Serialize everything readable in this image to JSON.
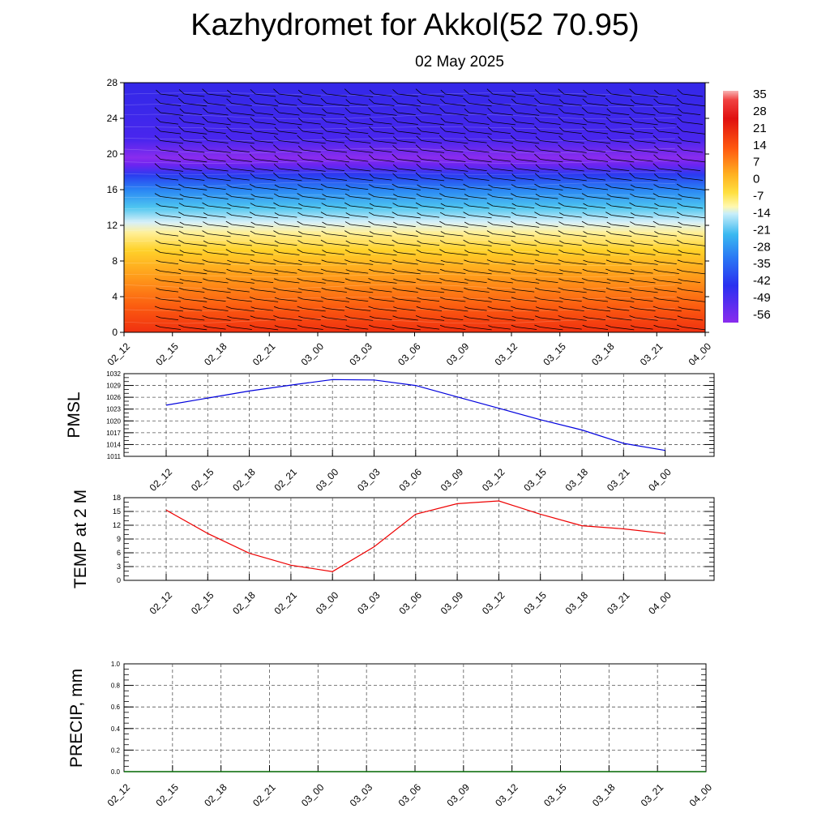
{
  "title": "Kazhydromet for Akkol(52 70.95)",
  "subtitle": "02 May 2025",
  "colors": {
    "pmsl_line": "#0000dd",
    "temp_line": "#ee0000",
    "precip_line": "#006600"
  },
  "chart_data": [
    {
      "type": "heatmap",
      "name": "vertical cross-section",
      "yticks": [
        "0",
        "4",
        "8",
        "12",
        "16",
        "20",
        "24",
        "28"
      ],
      "ylim": [
        0,
        28
      ],
      "xticks": [
        "02_12",
        "02_15",
        "02_18",
        "02_21",
        "03_00",
        "03_03",
        "03_06",
        "03_09",
        "03_12",
        "03_15",
        "03_18",
        "03_21",
        "04_00"
      ],
      "colorbar_labels": [
        "35",
        "28",
        "21",
        "14",
        "7",
        "0",
        "-7",
        "-14",
        "-21",
        "-28",
        "-35",
        "-42",
        "-49",
        "-56"
      ],
      "colorbar_range": [
        -56,
        35
      ]
    },
    {
      "type": "line",
      "ylabel": "PMSL",
      "ylim": [
        1011,
        1032
      ],
      "yticks": [
        "1032",
        "1029",
        "1026",
        "1023",
        "1020",
        "1017",
        "1014",
        "1011"
      ],
      "x": [
        "02_12",
        "02_15",
        "02_18",
        "02_21",
        "03_00",
        "03_03",
        "03_06",
        "03_09",
        "03_12",
        "03_15",
        "03_18",
        "03_21",
        "04_00"
      ],
      "values": [
        1024.0,
        1025.8,
        1027.6,
        1029.1,
        1030.5,
        1030.4,
        1029.0,
        1026.1,
        1023.2,
        1020.3,
        1017.7,
        1014.3,
        1012.5
      ]
    },
    {
      "type": "line",
      "ylabel": "TEMP at 2 M",
      "ylim": [
        0,
        18
      ],
      "yticks": [
        "18",
        "15",
        "12",
        "9",
        "6",
        "3",
        "0"
      ],
      "x": [
        "02_12",
        "02_15",
        "02_18",
        "02_21",
        "03_00",
        "03_03",
        "03_06",
        "03_09",
        "03_12",
        "03_15",
        "03_18",
        "03_21",
        "04_00"
      ],
      "values": [
        15.3,
        10.2,
        5.9,
        3.3,
        1.9,
        7.3,
        14.4,
        16.7,
        17.3,
        14.4,
        11.9,
        11.2,
        10.2
      ]
    },
    {
      "type": "line",
      "ylabel": "PRECIP, mm",
      "ylim": [
        0,
        1.0
      ],
      "yticks": [
        "1.0",
        "0.8",
        "0.6",
        "0.4",
        "0.2",
        "0.0"
      ],
      "x": [
        "02_12",
        "02_15",
        "02_18",
        "02_21",
        "03_00",
        "03_03",
        "03_06",
        "03_09",
        "03_12",
        "03_15",
        "03_18",
        "03_21",
        "04_00"
      ],
      "values": [
        0,
        0,
        0,
        0,
        0,
        0,
        0,
        0,
        0,
        0,
        0,
        0,
        0
      ]
    }
  ]
}
